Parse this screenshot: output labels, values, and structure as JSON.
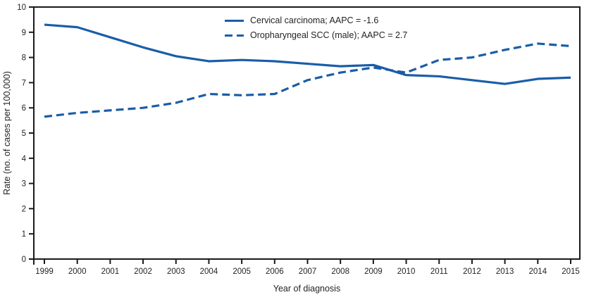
{
  "colors": {
    "line": "#1A5DA8",
    "axis": "#1a1a1a",
    "text": "#231f20",
    "background": "#ffffff"
  },
  "chart_data": {
    "type": "line",
    "title": "",
    "xlabel": "Year of diagnosis",
    "ylabel": "Rate (no. of cases per 100,000)",
    "x": [
      1999,
      2000,
      2001,
      2002,
      2003,
      2004,
      2005,
      2006,
      2007,
      2008,
      2009,
      2010,
      2011,
      2012,
      2013,
      2014,
      2015
    ],
    "ylim": [
      0,
      10
    ],
    "yticks": [
      0,
      1,
      2,
      3,
      4,
      5,
      6,
      7,
      8,
      9,
      10
    ],
    "grid": false,
    "legend_position": "top-center-inside",
    "series": [
      {
        "name": "Cervical carcinoma; AAPC = -1.6",
        "line_style": "solid",
        "values": [
          9.3,
          9.2,
          8.8,
          8.4,
          8.05,
          7.85,
          7.9,
          7.85,
          7.75,
          7.65,
          7.7,
          7.3,
          7.25,
          7.1,
          6.95,
          7.15,
          7.2
        ]
      },
      {
        "name": "Oropharyngeal SCC (male); AAPC = 2.7",
        "line_style": "dashed",
        "values": [
          5.65,
          5.8,
          5.9,
          6.0,
          6.2,
          6.55,
          6.5,
          6.55,
          7.1,
          7.4,
          7.6,
          7.4,
          7.9,
          8.0,
          8.3,
          8.55,
          8.45
        ]
      }
    ]
  }
}
